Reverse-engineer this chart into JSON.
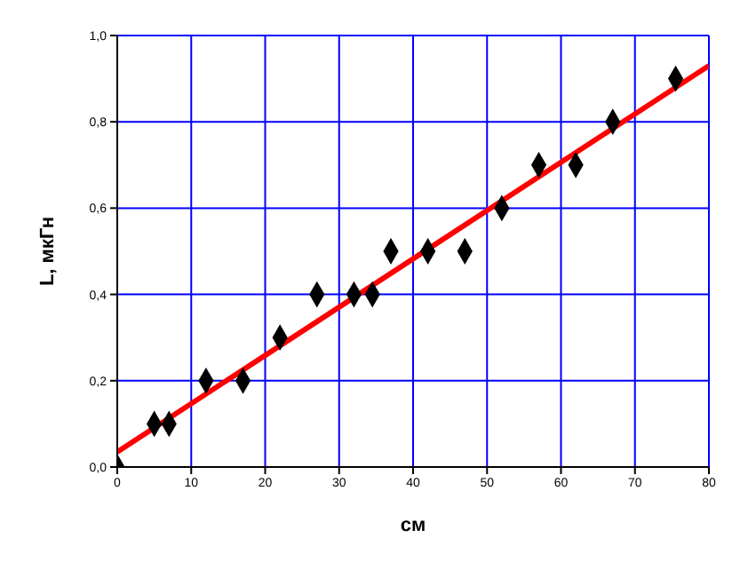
{
  "chart_data": {
    "type": "scatter",
    "xlabel": "см",
    "ylabel": "L, мкГн",
    "xlim": [
      0,
      80
    ],
    "xticks": [
      0,
      10,
      20,
      30,
      40,
      50,
      60,
      70,
      80
    ],
    "ylim": [
      0,
      1
    ],
    "yticks": [
      {
        "value": 0,
        "label": "0,0"
      },
      {
        "value": 0.2,
        "label": "0,2"
      },
      {
        "value": 0.4,
        "label": "0,4"
      },
      {
        "value": 0.6,
        "label": "0,6"
      },
      {
        "value": 0.8,
        "label": "0,8"
      },
      {
        "value": 1,
        "label": "1,0"
      }
    ],
    "grid": true,
    "marker": "diamond",
    "series": [
      {
        "color": "#000000",
        "x": [
          0,
          5,
          7,
          12,
          17,
          22,
          27,
          32,
          34.5,
          37,
          42,
          47,
          52,
          57,
          62,
          67,
          75.5
        ],
        "values": [
          0,
          0.1,
          0.1,
          0.2,
          0.2,
          0.3,
          0.4,
          0.4,
          0.4,
          0.5,
          0.5,
          0.5,
          0.6,
          0.7,
          0.7,
          0.8,
          0.9
        ]
      },
      {
        "type": "line",
        "color": "#ff0000",
        "x": [
          0,
          80
        ],
        "values": [
          0.035,
          0.93
        ],
        "marker": "none",
        "line_style": "solid"
      }
    ]
  }
}
